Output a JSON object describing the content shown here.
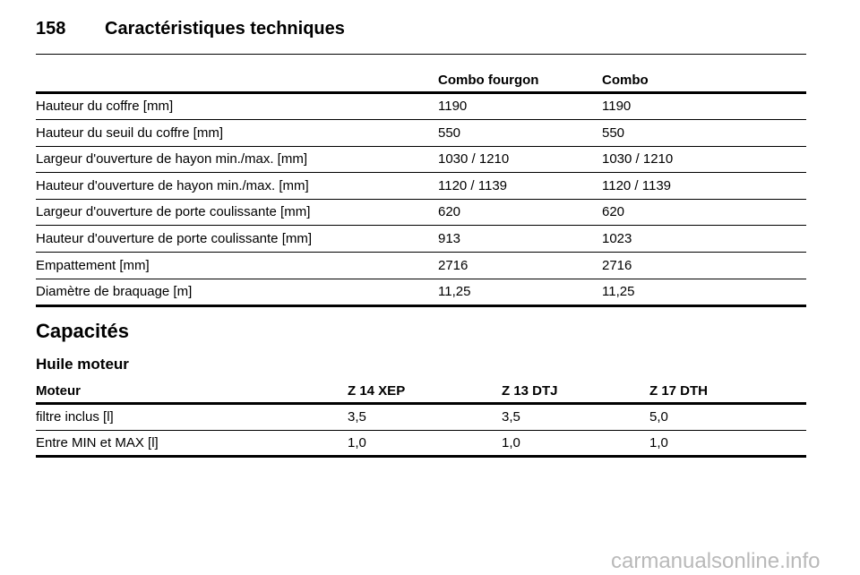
{
  "header": {
    "page_number": "158",
    "title": "Caractéristiques techniques"
  },
  "table1": {
    "columns": [
      "Combo fourgon",
      "Combo"
    ],
    "rows": [
      [
        "Hauteur du coffre [mm]",
        "1190",
        "1190"
      ],
      [
        "Hauteur du seuil du coffre [mm]",
        "550",
        "550"
      ],
      [
        "Largeur d'ouverture de hayon min./max. [mm]",
        "1030 / 1210",
        "1030 / 1210"
      ],
      [
        "Hauteur d'ouverture de hayon min./max. [mm]",
        "1120 / 1139",
        "1120 / 1139"
      ],
      [
        "Largeur d'ouverture de porte coulissante [mm]",
        "620",
        "620"
      ],
      [
        "Hauteur d'ouverture de porte coulissante [mm]",
        "913",
        "1023"
      ],
      [
        "Empattement [mm]",
        "2716",
        "2716"
      ],
      [
        "Diamètre de braquage [m]",
        "11,25",
        "11,25"
      ]
    ]
  },
  "section": {
    "title": "Capacités",
    "subtitle": "Huile moteur"
  },
  "table2": {
    "columns": [
      "Moteur",
      "Z 14 XEP",
      "Z 13 DTJ",
      "Z 17 DTH"
    ],
    "rows": [
      [
        "filtre inclus [l]",
        "3,5",
        "3,5",
        "5,0"
      ],
      [
        "Entre MIN et MAX [l]",
        "1,0",
        "1,0",
        "1,0"
      ]
    ]
  },
  "watermark": "carmanualsonline.info"
}
